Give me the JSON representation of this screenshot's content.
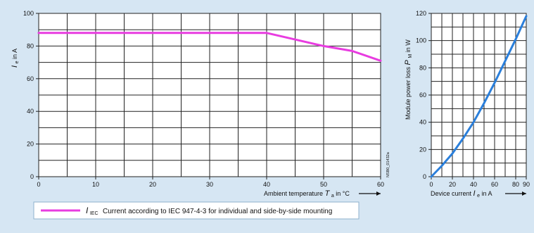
{
  "chart_data": [
    {
      "type": "line",
      "x": [
        0,
        40,
        50,
        55,
        60
      ],
      "series": [
        {
          "name": "I_IEC",
          "color": "#e83ce0",
          "values": [
            88,
            88,
            80,
            77,
            71
          ]
        }
      ],
      "xlabel": "Ambient temperature",
      "xlabel_symbol": "T",
      "xlabel_symbol_sub": "a",
      "xlabel_unit": "in °C",
      "ylabel": "I",
      "ylabel_sub": "e",
      "ylabel_unit": "in A",
      "xlim": [
        0,
        60
      ],
      "ylim": [
        0,
        100
      ],
      "x_ticks": [
        0,
        10,
        20,
        30,
        40,
        50,
        60
      ],
      "y_ticks": [
        0,
        20,
        40,
        60,
        80,
        100
      ],
      "grid": true,
      "side_code": "NSB0_01432a",
      "legend": {
        "symbol": "I",
        "symbol_sub": "IEC",
        "text": "Current according to IEC 947-4-3 for individual and side-by-side mounting",
        "position": "bottom-left"
      }
    },
    {
      "type": "line",
      "x": [
        0,
        10,
        20,
        30,
        40,
        50,
        60,
        70,
        80,
        90
      ],
      "series": [
        {
          "name": "P_M",
          "color": "#2a7fdb",
          "values": [
            0,
            8,
            17,
            28,
            40,
            54,
            69,
            85,
            101,
            118
          ]
        }
      ],
      "xlabel": "Device current",
      "xlabel_symbol": "I",
      "xlabel_symbol_sub": "e",
      "xlabel_unit": "in A",
      "ylabel": "Module power loss",
      "ylabel_symbol": "P",
      "ylabel_symbol_sub": "M",
      "ylabel_unit": "in W",
      "xlim": [
        0,
        90
      ],
      "ylim": [
        0,
        120
      ],
      "x_ticks": [
        0,
        20,
        40,
        60,
        80,
        90
      ],
      "y_ticks": [
        0,
        20,
        40,
        60,
        80,
        100,
        120
      ],
      "grid": true
    }
  ]
}
